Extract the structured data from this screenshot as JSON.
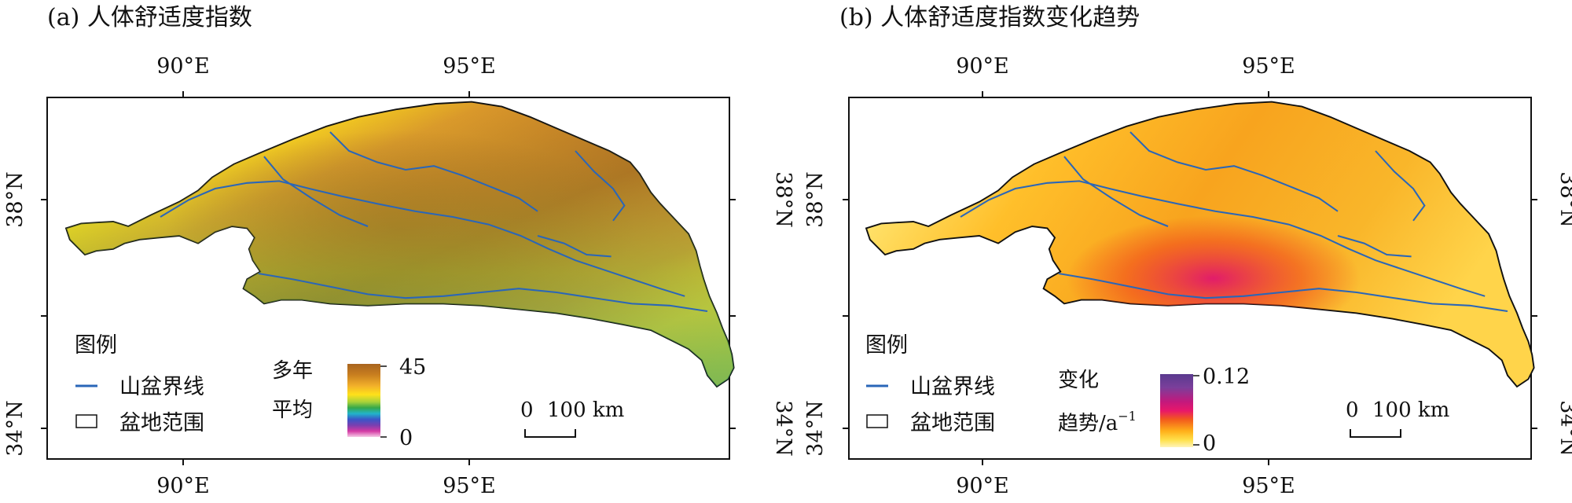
{
  "panels": [
    {
      "title": "(a) 人体舒适度指数",
      "top_ticks": [
        "90°E",
        "95°E"
      ],
      "bottom_ticks": [
        "90°E",
        "95°E"
      ],
      "left_ticks": [
        "38°N",
        "34°N"
      ],
      "right_ticks": [
        "38°N",
        "34°N"
      ],
      "legend": {
        "title": "图例",
        "boundary_line": "山盆界线",
        "basin_extent": "盆地范围",
        "scale_label_1": "多年",
        "scale_label_2": "平均",
        "scale_max": "45",
        "scale_min": "0"
      },
      "scalebar": {
        "zero": "0",
        "length": "100 km"
      },
      "colors": [
        "#f6cbe6",
        "#d43aa4",
        "#7a3fb0",
        "#3a55c8",
        "#22b4c9",
        "#35a84a",
        "#a9d23a",
        "#ffe11a",
        "#f2b02a",
        "#c97f1f",
        "#a8641f"
      ]
    },
    {
      "title": "(b) 人体舒适度指数变化趋势",
      "top_ticks": [
        "90°E",
        "95°E"
      ],
      "bottom_ticks": [
        "90°E",
        "95°E"
      ],
      "left_ticks": [
        "38°N",
        "34°N"
      ],
      "right_ticks": [
        "38°N",
        "34°N"
      ],
      "legend": {
        "title": "图例",
        "boundary_line": "山盆界线",
        "basin_extent": "盆地范围",
        "scale_label_1": "变化",
        "scale_label_2": "趋势/a",
        "scale_label_sup": "−1",
        "scale_max": "0.12",
        "scale_min": "0"
      },
      "scalebar": {
        "zero": "0",
        "length": "100 km"
      },
      "colors": [
        "#fff3b8",
        "#ffe04a",
        "#ffb01a",
        "#f25a1c",
        "#e8176a",
        "#c4187c",
        "#7a3f9b",
        "#5a3a8e"
      ]
    }
  ]
}
